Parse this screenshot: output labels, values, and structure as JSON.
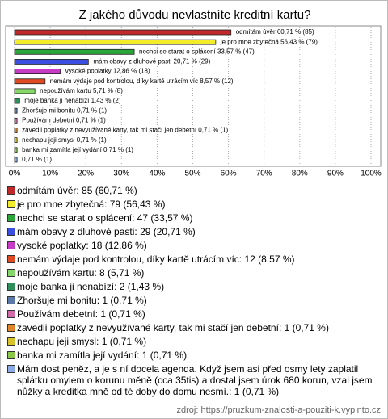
{
  "chart_data": {
    "type": "bar",
    "orientation": "horizontal",
    "title": "Z jakého důvodu nevlastníte kreditní kartu?",
    "values": [
      60.71,
      56.43,
      33.57,
      20.71,
      12.86,
      8.57,
      5.71,
      1.43,
      0.71,
      0.71,
      0.71,
      0.71,
      0.71,
      0.71
    ],
    "counts": [
      85,
      79,
      47,
      29,
      18,
      12,
      8,
      2,
      1,
      1,
      1,
      1,
      1,
      1
    ],
    "value_labels": [
      "odmítám úvěr 60,71 % (85)",
      "je pro mne zbytečná 56,43 % (79)",
      "nechci se starat o splácení 33,57 % (47)",
      "mám obavy z dluhové pasti 20,71 % (29)",
      "vysoké poplatky 12,86 % (18)",
      "nemám výdaje pod kontrolou, díky kartě utrácím víc 8,57 % (12)",
      "nepoužívám kartu 5,71 % (8)",
      "moje banka ji nenabízí 1,43 % (2)",
      "Zhoršuje mi bonitu 0,71 % (1)",
      "Používám debetní 0,71 % (1)",
      "zavedli poplatky z nevyužívané karty, tak mi stačí jen debetní 0,71 % (1)",
      "nechapu jeji smysl 0,71 % (1)",
      "banka mi zamítla její vydání 0,71 % (1)",
      "0,71 % (1)"
    ],
    "legend_labels": [
      "odmítám úvěr: 85 (60,71 %)",
      "je pro mne zbytečná: 79 (56,43 %)",
      "nechci se starat o splácení: 47 (33,57 %)",
      "mám obavy z dluhové pasti: 29 (20,71 %)",
      "vysoké poplatky: 18 (12,86 %)",
      "nemám výdaje pod kontrolou, díky kartě utrácím víc: 12 (8,57 %)",
      "nepoužívám kartu: 8 (5,71 %)",
      "moje banka ji nenabízí: 2 (1,43 %)",
      "Zhoršuje mi bonitu: 1 (0,71 %)",
      "Používám debetní: 1 (0,71 %)",
      "zavedli poplatky z nevyužívané karty, tak mi stačí jen debetní: 1 (0,71 %)",
      "nechapu jeji smysl: 1 (0,71 %)",
      "banka mi zamítla její vydání: 1 (0,71 %)",
      "Mám dost peněz, a je s ní docela agenda. Když jsem asi před osmy lety zaplatil splátku omylem o korunu měně (cca 35tis) a dostal jsem úrok 680 korun, vzal jsem nůžky a kreditka mně od té doby do domu nesmí.: 1 (0,71 %)"
    ],
    "colors": [
      "#c0282a",
      "#f2ec2a",
      "#2aa63a",
      "#3a4ee0",
      "#c63ac6",
      "#e04a22",
      "#86d86a",
      "#2f8f5a",
      "#5a78a8",
      "#d06aa8",
      "#e0862a",
      "#d8c42a",
      "#8ac84a",
      "#8aaae8"
    ],
    "xlim": [
      0,
      100
    ],
    "xticks": [
      {
        "value": 0,
        "label": "0%"
      },
      {
        "value": 10,
        "label": "10%"
      },
      {
        "value": 20,
        "label": "20%"
      },
      {
        "value": 30,
        "label": "30%"
      },
      {
        "value": 40,
        "label": "40%"
      },
      {
        "value": 50,
        "label": "50%"
      },
      {
        "value": 60,
        "label": "60%"
      },
      {
        "value": 70,
        "label": "70%"
      },
      {
        "value": 80,
        "label": "80%"
      },
      {
        "value": 90,
        "label": "90%"
      },
      {
        "value": 100,
        "label": "100%"
      }
    ],
    "grid": true,
    "source": "zdroj: https://pruzkum-znalosti-a-pouziti-k.vyplnto.cz"
  }
}
